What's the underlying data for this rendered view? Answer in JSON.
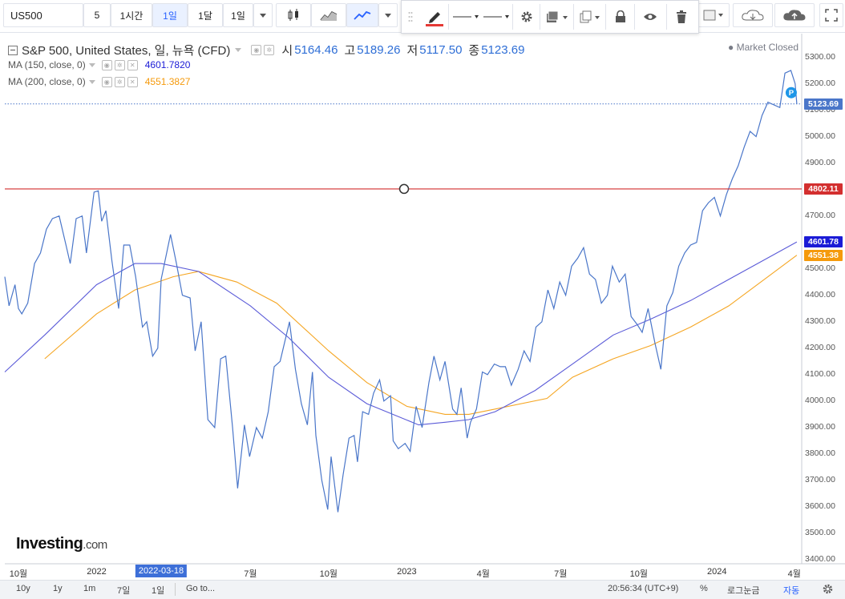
{
  "toolbar": {
    "symbol": "US500",
    "interval": "5",
    "timeframes": [
      "1시간",
      "1일",
      "1달",
      "1일"
    ],
    "active_timeframe_index": 1
  },
  "legend": {
    "title": "S&P 500, United States, 일, 뉴욕 (CFD)",
    "open_label": "시",
    "open": "5164.46",
    "high_label": "고",
    "high": "5189.26",
    "low_label": "저",
    "low": "5117.50",
    "close_label": "종",
    "close": "5123.69",
    "ma150_label": "MA (150, close, 0)",
    "ma150_value": "4601.7820",
    "ma200_label": "MA (200, close, 0)",
    "ma200_value": "4551.3827"
  },
  "market_status": "Market Closed",
  "price_badges": {
    "last": "5123.69",
    "hline": "4802.11",
    "ma150": "4601.78",
    "ma200": "4551.38"
  },
  "crosshair_date": "2022-03-18",
  "marker_label": "P",
  "logo": {
    "main": "Investing",
    "suffix": ".com"
  },
  "bottom_bar": {
    "ranges": [
      "10y",
      "1y",
      "1m",
      "7일",
      "1일"
    ],
    "goto": "Go to...",
    "time": "20:56:34 (UTC+9)",
    "percent": "%",
    "log": "로그눈금",
    "auto": "자동"
  },
  "colors": {
    "price_line": "#4a76c9",
    "ma150": "#5b5bd8",
    "ma200": "#f5a623",
    "hline": "#d32f2f",
    "badge_last": "#4a76c9",
    "badge_ma150": "#1b1bd6",
    "badge_ma200": "#f59a0c"
  },
  "chart_data": {
    "type": "line",
    "ylim": [
      3400,
      5350
    ],
    "y_ticks": [
      3400,
      3500,
      3600,
      3700,
      3800,
      3900,
      4000,
      4100,
      4200,
      4300,
      4400,
      4500,
      4600,
      4700,
      4800,
      4900,
      5000,
      5100,
      5200,
      5300
    ],
    "y_tick_labels": [
      "3400.00",
      "3500.00",
      "3600.00",
      "3700.00",
      "3800.00",
      "3900.00",
      "4000.00",
      "4100.00",
      "4200.00",
      "4300.00",
      "4400.00",
      "4500.00",
      "4600.00",
      "4700.00",
      "4800.00",
      "4900.00",
      "5000.00",
      "5100.00",
      "5200.00",
      "5300.00"
    ],
    "x_ticks": [
      "2021-10-01",
      "2022-01-01",
      "2022-07-01",
      "2022-10-01",
      "2023-01-01",
      "2023-04-01",
      "2023-07-01",
      "2023-10-01",
      "2024-01-01",
      "2024-04-01"
    ],
    "x_tick_labels": [
      "10월",
      "2022",
      "7월",
      "10월",
      "2023",
      "4월",
      "7월",
      "10월",
      "2024",
      "4월"
    ],
    "xlim": [
      "2021-09-15",
      "2024-04-05"
    ],
    "horizontal_line": 4802.11,
    "series": [
      {
        "name": "S&P 500",
        "points": [
          [
            "2021-09-15",
            4470
          ],
          [
            "2021-09-20",
            4360
          ],
          [
            "2021-09-27",
            4440
          ],
          [
            "2021-10-01",
            4350
          ],
          [
            "2021-10-05",
            4330
          ],
          [
            "2021-10-12",
            4370
          ],
          [
            "2021-10-20",
            4520
          ],
          [
            "2021-10-27",
            4560
          ],
          [
            "2021-11-03",
            4650
          ],
          [
            "2021-11-10",
            4690
          ],
          [
            "2021-11-18",
            4700
          ],
          [
            "2021-11-26",
            4590
          ],
          [
            "2021-12-01",
            4520
          ],
          [
            "2021-12-08",
            4690
          ],
          [
            "2021-12-15",
            4700
          ],
          [
            "2021-12-20",
            4560
          ],
          [
            "2021-12-29",
            4790
          ],
          [
            "2022-01-03",
            4795
          ],
          [
            "2022-01-07",
            4680
          ],
          [
            "2022-01-12",
            4720
          ],
          [
            "2022-01-19",
            4530
          ],
          [
            "2022-01-27",
            4350
          ],
          [
            "2022-02-02",
            4590
          ],
          [
            "2022-02-09",
            4590
          ],
          [
            "2022-02-16",
            4470
          ],
          [
            "2022-02-24",
            4280
          ],
          [
            "2022-03-01",
            4300
          ],
          [
            "2022-03-08",
            4170
          ],
          [
            "2022-03-14",
            4200
          ],
          [
            "2022-03-18",
            4460
          ],
          [
            "2022-03-29",
            4630
          ],
          [
            "2022-04-05",
            4520
          ],
          [
            "2022-04-12",
            4400
          ],
          [
            "2022-04-21",
            4390
          ],
          [
            "2022-04-27",
            4190
          ],
          [
            "2022-05-04",
            4300
          ],
          [
            "2022-05-12",
            3930
          ],
          [
            "2022-05-20",
            3900
          ],
          [
            "2022-05-27",
            4160
          ],
          [
            "2022-06-02",
            4170
          ],
          [
            "2022-06-10",
            3900
          ],
          [
            "2022-06-16",
            3670
          ],
          [
            "2022-06-24",
            3910
          ],
          [
            "2022-06-30",
            3790
          ],
          [
            "2022-07-08",
            3900
          ],
          [
            "2022-07-15",
            3860
          ],
          [
            "2022-07-22",
            3960
          ],
          [
            "2022-07-29",
            4130
          ],
          [
            "2022-08-05",
            4150
          ],
          [
            "2022-08-16",
            4300
          ],
          [
            "2022-08-23",
            4120
          ],
          [
            "2022-08-30",
            3990
          ],
          [
            "2022-09-06",
            3910
          ],
          [
            "2022-09-12",
            4110
          ],
          [
            "2022-09-16",
            3870
          ],
          [
            "2022-09-23",
            3700
          ],
          [
            "2022-09-30",
            3590
          ],
          [
            "2022-10-04",
            3790
          ],
          [
            "2022-10-12",
            3580
          ],
          [
            "2022-10-18",
            3720
          ],
          [
            "2022-10-25",
            3860
          ],
          [
            "2022-10-31",
            3870
          ],
          [
            "2022-11-04",
            3770
          ],
          [
            "2022-11-10",
            3960
          ],
          [
            "2022-11-17",
            3950
          ],
          [
            "2022-11-23",
            4030
          ],
          [
            "2022-11-30",
            4080
          ],
          [
            "2022-12-05",
            4000
          ],
          [
            "2022-12-13",
            4020
          ],
          [
            "2022-12-16",
            3850
          ],
          [
            "2022-12-22",
            3820
          ],
          [
            "2022-12-30",
            3840
          ],
          [
            "2023-01-05",
            3810
          ],
          [
            "2023-01-12",
            3980
          ],
          [
            "2023-01-19",
            3900
          ],
          [
            "2023-01-27",
            4070
          ],
          [
            "2023-02-02",
            4170
          ],
          [
            "2023-02-09",
            4080
          ],
          [
            "2023-02-15",
            4150
          ],
          [
            "2023-02-24",
            3970
          ],
          [
            "2023-03-01",
            3950
          ],
          [
            "2023-03-06",
            4050
          ],
          [
            "2023-03-13",
            3860
          ],
          [
            "2023-03-17",
            3920
          ],
          [
            "2023-03-24",
            3970
          ],
          [
            "2023-03-31",
            4110
          ],
          [
            "2023-04-06",
            4100
          ],
          [
            "2023-04-14",
            4140
          ],
          [
            "2023-04-21",
            4130
          ],
          [
            "2023-04-27",
            4130
          ],
          [
            "2023-05-04",
            4060
          ],
          [
            "2023-05-12",
            4120
          ],
          [
            "2023-05-19",
            4190
          ],
          [
            "2023-05-26",
            4150
          ],
          [
            "2023-06-02",
            4280
          ],
          [
            "2023-06-09",
            4300
          ],
          [
            "2023-06-16",
            4420
          ],
          [
            "2023-06-23",
            4350
          ],
          [
            "2023-06-30",
            4450
          ],
          [
            "2023-07-07",
            4400
          ],
          [
            "2023-07-14",
            4510
          ],
          [
            "2023-07-21",
            4540
          ],
          [
            "2023-07-28",
            4580
          ],
          [
            "2023-08-04",
            4480
          ],
          [
            "2023-08-11",
            4460
          ],
          [
            "2023-08-18",
            4370
          ],
          [
            "2023-08-25",
            4400
          ],
          [
            "2023-08-31",
            4510
          ],
          [
            "2023-09-08",
            4450
          ],
          [
            "2023-09-15",
            4480
          ],
          [
            "2023-09-22",
            4320
          ],
          [
            "2023-09-29",
            4290
          ],
          [
            "2023-10-05",
            4260
          ],
          [
            "2023-10-12",
            4350
          ],
          [
            "2023-10-20",
            4220
          ],
          [
            "2023-10-27",
            4120
          ],
          [
            "2023-11-03",
            4360
          ],
          [
            "2023-11-10",
            4410
          ],
          [
            "2023-11-17",
            4510
          ],
          [
            "2023-11-24",
            4560
          ],
          [
            "2023-12-01",
            4590
          ],
          [
            "2023-12-08",
            4600
          ],
          [
            "2023-12-15",
            4720
          ],
          [
            "2023-12-22",
            4750
          ],
          [
            "2023-12-29",
            4770
          ],
          [
            "2024-01-05",
            4700
          ],
          [
            "2024-01-12",
            4780
          ],
          [
            "2024-01-19",
            4840
          ],
          [
            "2024-01-26",
            4890
          ],
          [
            "2024-02-02",
            4960
          ],
          [
            "2024-02-09",
            5020
          ],
          [
            "2024-02-16",
            5000
          ],
          [
            "2024-02-23",
            5080
          ],
          [
            "2024-03-01",
            5130
          ],
          [
            "2024-03-08",
            5120
          ],
          [
            "2024-03-15",
            5110
          ],
          [
            "2024-03-21",
            5240
          ],
          [
            "2024-03-28",
            5250
          ],
          [
            "2024-04-02",
            5200
          ],
          [
            "2024-04-04",
            5123.69
          ]
        ]
      },
      {
        "name": "MA (150, close, 0)",
        "points": [
          [
            "2021-09-15",
            4110
          ],
          [
            "2021-11-01",
            4250
          ],
          [
            "2022-01-01",
            4440
          ],
          [
            "2022-02-15",
            4520
          ],
          [
            "2022-03-18",
            4520
          ],
          [
            "2022-05-01",
            4490
          ],
          [
            "2022-07-01",
            4360
          ],
          [
            "2022-08-15",
            4240
          ],
          [
            "2022-10-01",
            4090
          ],
          [
            "2022-11-15",
            3990
          ],
          [
            "2023-01-15",
            3910
          ],
          [
            "2023-02-15",
            3920
          ],
          [
            "2023-03-15",
            3930
          ],
          [
            "2023-04-15",
            3960
          ],
          [
            "2023-06-01",
            4040
          ],
          [
            "2023-07-15",
            4140
          ],
          [
            "2023-09-01",
            4250
          ],
          [
            "2023-10-15",
            4310
          ],
          [
            "2023-12-01",
            4380
          ],
          [
            "2024-01-15",
            4460
          ],
          [
            "2024-04-04",
            4601.78
          ]
        ]
      },
      {
        "name": "MA (200, close, 0)",
        "points": [
          [
            "2021-11-01",
            4160
          ],
          [
            "2022-01-01",
            4330
          ],
          [
            "2022-02-15",
            4420
          ],
          [
            "2022-04-01",
            4470
          ],
          [
            "2022-05-01",
            4490
          ],
          [
            "2022-06-15",
            4450
          ],
          [
            "2022-08-01",
            4370
          ],
          [
            "2022-10-01",
            4190
          ],
          [
            "2022-11-15",
            4070
          ],
          [
            "2023-01-01",
            3980
          ],
          [
            "2023-02-15",
            3950
          ],
          [
            "2023-03-15",
            3950
          ],
          [
            "2023-04-15",
            3970
          ],
          [
            "2023-06-15",
            4010
          ],
          [
            "2023-07-15",
            4090
          ],
          [
            "2023-09-01",
            4160
          ],
          [
            "2023-10-15",
            4210
          ],
          [
            "2023-12-01",
            4280
          ],
          [
            "2024-01-15",
            4360
          ],
          [
            "2024-04-04",
            4551.38
          ]
        ]
      }
    ]
  }
}
